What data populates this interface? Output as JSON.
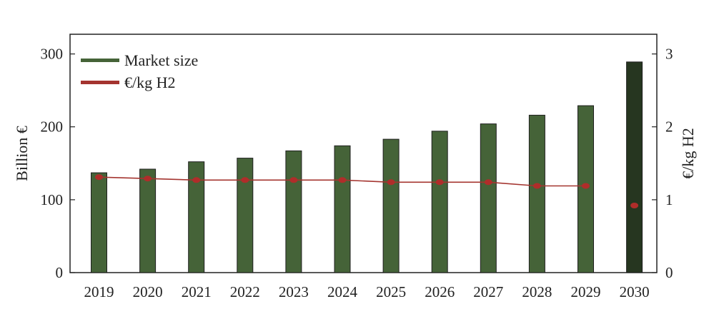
{
  "chart_data": {
    "type": "bar",
    "categories": [
      "2019",
      "2020",
      "2021",
      "2022",
      "2023",
      "2024",
      "2025",
      "2026",
      "2027",
      "2028",
      "2029",
      "2030"
    ],
    "series": [
      {
        "name": "Market size",
        "type": "bar",
        "axis": "left",
        "values": [
          137,
          142,
          152,
          157,
          167,
          174,
          183,
          194,
          204,
          216,
          229,
          289
        ]
      },
      {
        "name": "€/kg H2",
        "type": "line",
        "axis": "right",
        "values": [
          1.31,
          1.29,
          1.27,
          1.27,
          1.27,
          1.27,
          1.24,
          1.24,
          1.24,
          1.19,
          1.19,
          0.92
        ]
      }
    ],
    "highlight_category": "2030",
    "ylabel_left": "Billion €",
    "ylabel_right": "€/kg H2",
    "ylim_left": [
      0,
      327
    ],
    "ylim_right": [
      0,
      3.27
    ],
    "yticks_left": [
      "0",
      "100",
      "200",
      "300"
    ],
    "yticks_right": [
      "0",
      "1",
      "2",
      "3"
    ],
    "legend_position": "top-left",
    "grid": false,
    "colors": {
      "bar": "#456338",
      "bar_highlight": "#263620",
      "line": "#a4342f",
      "marker": "#b02d2a"
    }
  }
}
